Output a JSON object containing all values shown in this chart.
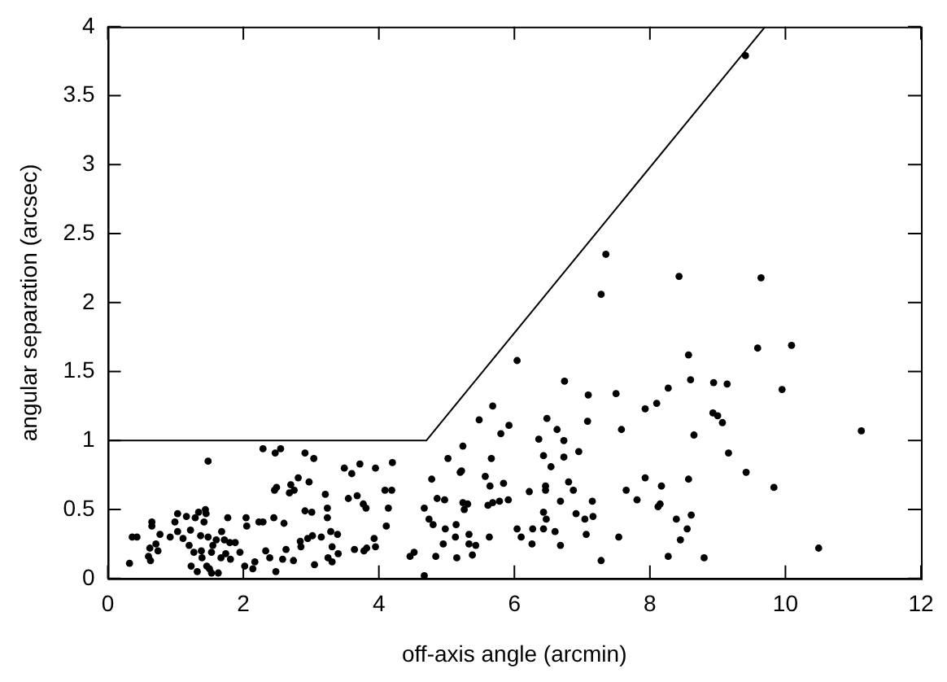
{
  "chart_data": {
    "type": "scatter",
    "xlabel": "off-axis angle (arcmin)",
    "ylabel": "angular separation (arcsec)",
    "xlim": [
      0,
      12
    ],
    "ylim": [
      0,
      4
    ],
    "xticks": [
      0,
      2,
      4,
      6,
      8,
      10,
      12
    ],
    "yticks": [
      0,
      0.5,
      1,
      1.5,
      2,
      2.5,
      3,
      3.5,
      4
    ],
    "grid": false,
    "legend": false,
    "series": [
      {
        "color": "#000000",
        "marker": "circle",
        "x": [
          9.41,
          8.43,
          9.64,
          8.57,
          9.59,
          10.09,
          8.6,
          8.27,
          8.94,
          9.14,
          9.95,
          8.1,
          7.93,
          8.93,
          9.0,
          9.07,
          8.65,
          11.12,
          9.16,
          9.42,
          9.83,
          7.93,
          8.17,
          8.57,
          8.12,
          8.15,
          8.39,
          8.61,
          8.55,
          8.45,
          8.27,
          8.8,
          10.49,
          7.35,
          7.28,
          6.04,
          6.74,
          7.09,
          7.5,
          7.08,
          7.58,
          5.68,
          5.48,
          5.92,
          5.8,
          6.48,
          6.63,
          6.36,
          6.73,
          6.43,
          6.54,
          6.73,
          6.95,
          5.24,
          5.02,
          5.66,
          5.22,
          5.2,
          5.57,
          4.78,
          5.64,
          5.84,
          6.46,
          6.46,
          6.22,
          6.8,
          6.87,
          7.65,
          4.86,
          4.97,
          5.24,
          5.31,
          5.26,
          5.61,
          5.68,
          5.78,
          5.91,
          6.68,
          7.15,
          7.81,
          4.67,
          4.14,
          4.19,
          4.09,
          3.95,
          4.2,
          4.74,
          4.8,
          4.98,
          5.14,
          5.33,
          5.13,
          4.95,
          5.15,
          5.38,
          5.33,
          5.43,
          5.63,
          6.04,
          6.1,
          6.26,
          6.27,
          6.43,
          6.47,
          6.43,
          6.6,
          6.68,
          6.91,
          7.04,
          7.16,
          7.06,
          7.54,
          7.28,
          4.84,
          4.52,
          4.46,
          4.67,
          3.95,
          3.93,
          4.11,
          1.48,
          2.29,
          2.47,
          2.55,
          2.91,
          3.04,
          3.49,
          3.72,
          3.6,
          2.81,
          2.7,
          2.97,
          2.49,
          2.46,
          2.68,
          2.75,
          3.21,
          3.55,
          3.68,
          3.77,
          3.81,
          2.91,
          3.01,
          3.24,
          3.24,
          2.45,
          2.6,
          2.29,
          2.23,
          2.04,
          2.05,
          1.77,
          1.68,
          1.44,
          1.45,
          1.34,
          1.29,
          1.03,
          0.65,
          0.65,
          0.99,
          1.16,
          1.42,
          1.22,
          1.37,
          1.48,
          1.55,
          1.6,
          1.72,
          1.8,
          1.88,
          1.95,
          1.74,
          1.67,
          1.53,
          1.38,
          1.27,
          1.2,
          1.11,
          1.03,
          0.92,
          0.77,
          0.71,
          0.74,
          0.62,
          0.43,
          0.6,
          0.63,
          0.36,
          0.32,
          1.39,
          1.46,
          1.23,
          1.32,
          1.53,
          1.63,
          1.5,
          1.81,
          2.02,
          2.14,
          2.17,
          2.39,
          2.48,
          2.33,
          2.58,
          2.63,
          2.74,
          2.85,
          2.95,
          3.02,
          2.84,
          3.05,
          3.15,
          3.29,
          3.39,
          3.31,
          3.4,
          3.25,
          3.31,
          3.64,
          3.78,
          3.82
        ],
        "values": [
          3.79,
          2.19,
          2.18,
          1.62,
          1.67,
          1.69,
          1.44,
          1.38,
          1.42,
          1.41,
          1.37,
          1.27,
          1.23,
          1.2,
          1.18,
          1.13,
          1.04,
          1.07,
          0.91,
          0.77,
          0.66,
          0.73,
          0.67,
          0.72,
          0.52,
          0.54,
          0.43,
          0.46,
          0.36,
          0.28,
          0.16,
          0.15,
          0.22,
          2.35,
          2.06,
          1.58,
          1.43,
          1.33,
          1.34,
          1.14,
          1.08,
          1.25,
          1.15,
          1.11,
          1.05,
          1.16,
          1.08,
          1.01,
          1.0,
          0.89,
          0.81,
          0.88,
          0.92,
          0.96,
          0.87,
          0.87,
          0.78,
          0.77,
          0.74,
          0.72,
          0.67,
          0.69,
          0.67,
          0.64,
          0.63,
          0.7,
          0.64,
          0.64,
          0.58,
          0.57,
          0.55,
          0.54,
          0.5,
          0.53,
          0.55,
          0.56,
          0.57,
          0.56,
          0.56,
          0.57,
          0.51,
          0.51,
          0.64,
          0.64,
          0.8,
          0.84,
          0.43,
          0.39,
          0.36,
          0.39,
          0.32,
          0.3,
          0.25,
          0.15,
          0.17,
          0.25,
          0.24,
          0.3,
          0.36,
          0.3,
          0.25,
          0.36,
          0.48,
          0.43,
          0.36,
          0.34,
          0.24,
          0.47,
          0.43,
          0.45,
          0.32,
          0.3,
          0.13,
          0.16,
          0.19,
          0.16,
          0.02,
          0.23,
          0.29,
          0.38,
          0.85,
          0.94,
          0.91,
          0.94,
          0.91,
          0.87,
          0.8,
          0.83,
          0.76,
          0.73,
          0.68,
          0.7,
          0.66,
          0.64,
          0.62,
          0.64,
          0.61,
          0.58,
          0.6,
          0.54,
          0.51,
          0.49,
          0.48,
          0.51,
          0.44,
          0.44,
          0.4,
          0.41,
          0.41,
          0.44,
          0.38,
          0.44,
          0.34,
          0.5,
          0.47,
          0.48,
          0.44,
          0.47,
          0.38,
          0.41,
          0.41,
          0.45,
          0.41,
          0.35,
          0.31,
          0.3,
          0.24,
          0.28,
          0.28,
          0.26,
          0.26,
          0.19,
          0.18,
          0.15,
          0.19,
          0.2,
          0.19,
          0.24,
          0.29,
          0.34,
          0.3,
          0.32,
          0.25,
          0.2,
          0.22,
          0.3,
          0.16,
          0.13,
          0.3,
          0.11,
          0.15,
          0.09,
          0.09,
          0.05,
          0.04,
          0.04,
          0.07,
          0.14,
          0.09,
          0.07,
          0.12,
          0.15,
          0.05,
          0.2,
          0.14,
          0.21,
          0.13,
          0.23,
          0.29,
          0.31,
          0.27,
          0.1,
          0.3,
          0.34,
          0.32,
          0.23,
          0.18,
          0.15,
          0.12,
          0.21,
          0.2,
          0.22
        ]
      },
      {
        "type": "line",
        "color": "#000000",
        "marker": "none",
        "line_style": "solid",
        "x": [
          0,
          4.7,
          9.7
        ],
        "values": [
          1,
          1,
          4
        ]
      }
    ]
  }
}
